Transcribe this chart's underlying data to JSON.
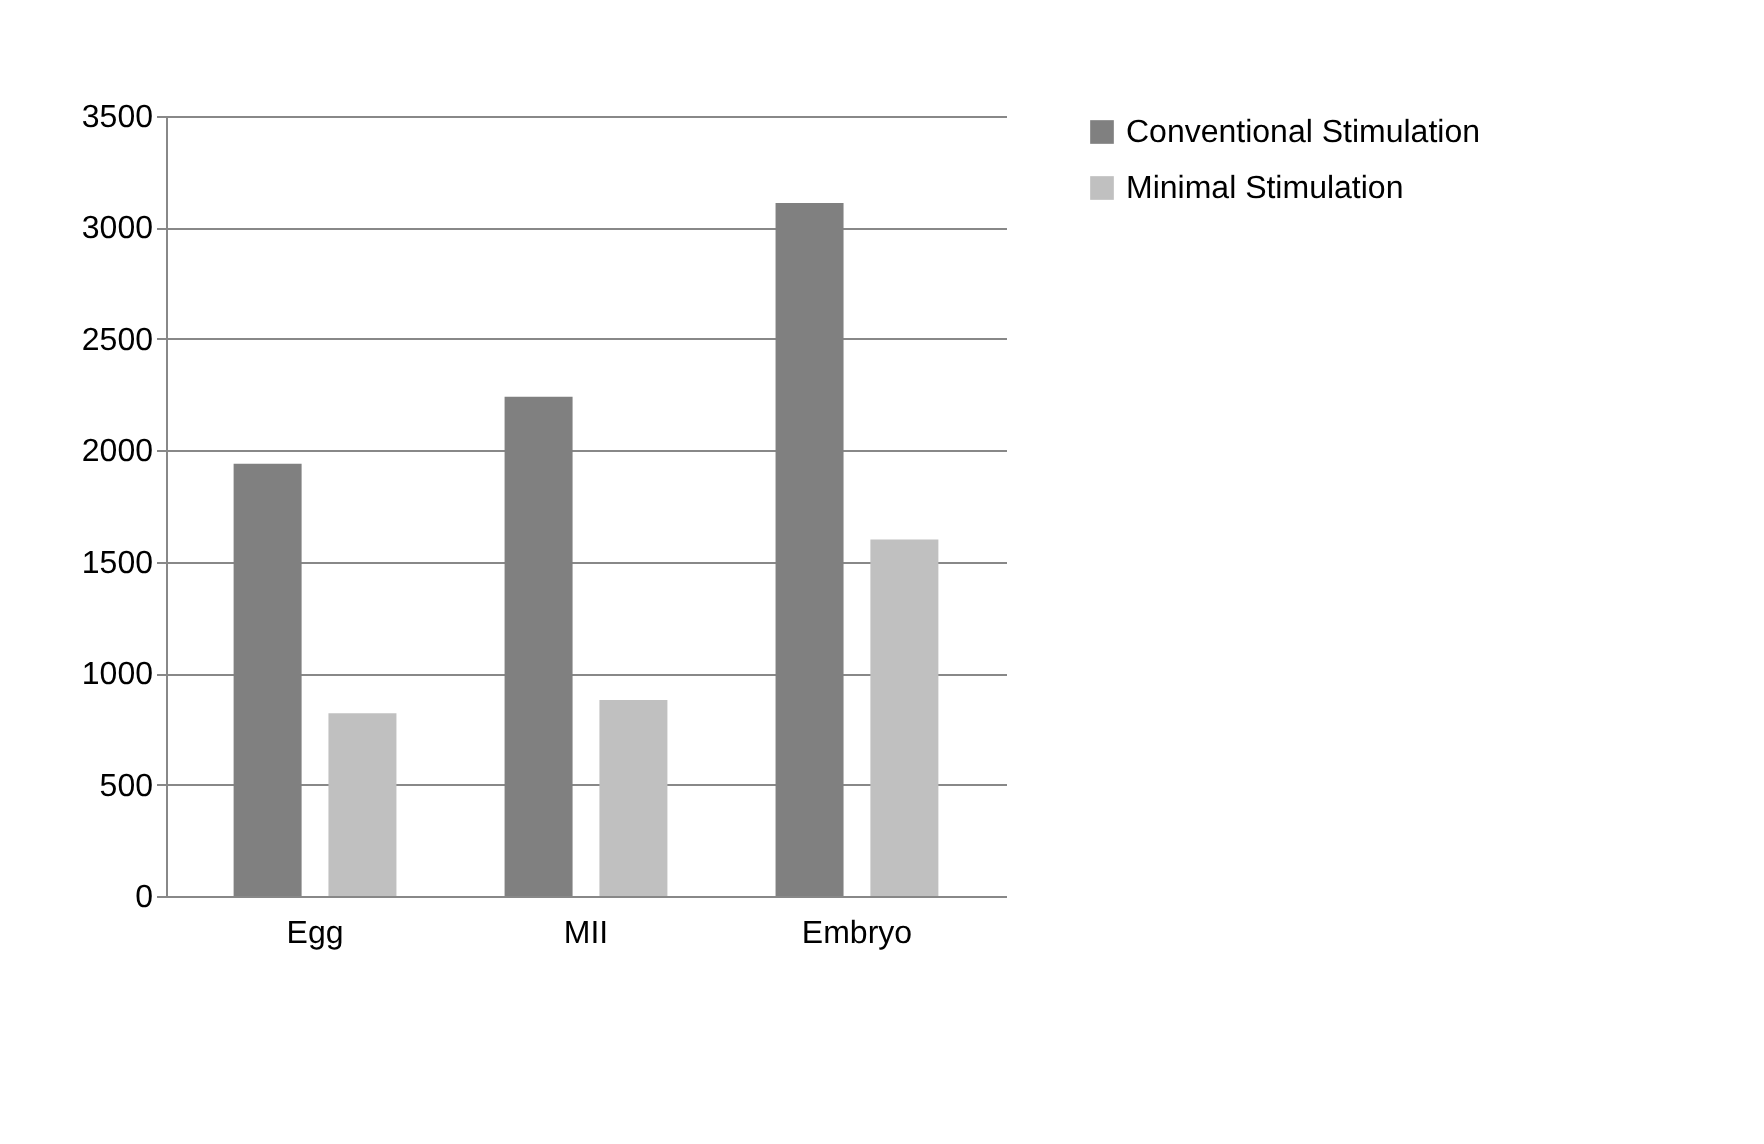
{
  "chart_data": {
    "type": "bar",
    "categories": [
      "Egg",
      "MII",
      "Embryo"
    ],
    "series": [
      {
        "name": "Conventional Stimulation",
        "color": "#808080",
        "values": [
          1940,
          2240,
          3110
        ]
      },
      {
        "name": "Minimal Stimulation",
        "color": "#c0c0c0",
        "values": [
          820,
          880,
          1600
        ]
      }
    ],
    "ylim": [
      0,
      3500
    ],
    "yticks": [
      0,
      500,
      1000,
      1500,
      2000,
      2500,
      3000,
      3500
    ],
    "grid": "y",
    "legend": "right"
  }
}
